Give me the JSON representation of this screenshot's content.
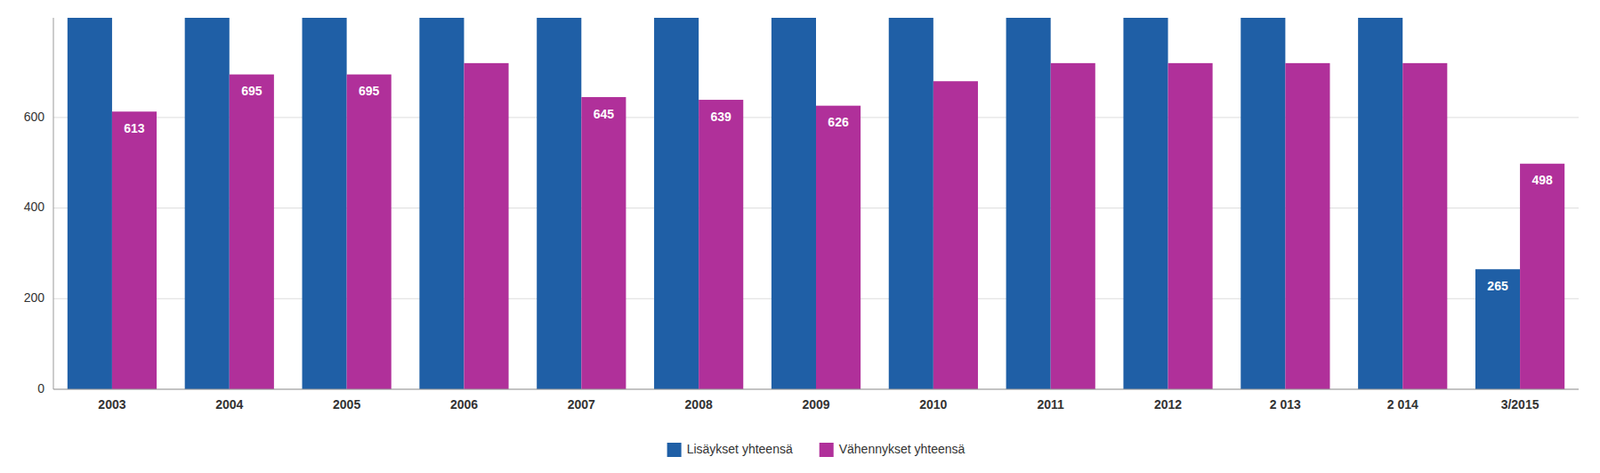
{
  "chart_data": {
    "type": "bar",
    "categories": [
      "2003",
      "2004",
      "2005",
      "2006",
      "2007",
      "2008",
      "2009",
      "2010",
      "2011",
      "2012",
      "2 013",
      "2 014",
      "3/2015"
    ],
    "series": [
      {
        "name": "Lisäykset yhteensä",
        "color": "#1F5FA6",
        "values": [
          820,
          820,
          820,
          820,
          820,
          820,
          820,
          820,
          820,
          820,
          820,
          820,
          265
        ],
        "value_labels": [
          null,
          null,
          null,
          null,
          null,
          null,
          null,
          null,
          null,
          null,
          null,
          null,
          "265"
        ]
      },
      {
        "name": "Vähennykset yhteensä",
        "color": "#B0309A",
        "values": [
          613,
          695,
          695,
          720,
          645,
          639,
          626,
          680,
          720,
          720,
          720,
          720,
          498
        ],
        "value_labels": [
          "613",
          "695",
          "695",
          null,
          "645",
          "639",
          "626",
          null,
          null,
          null,
          null,
          null,
          "498"
        ]
      }
    ],
    "ylim": [
      0,
      820
    ],
    "yticks": [
      0,
      200,
      400,
      600
    ],
    "grid": true,
    "legend": "bottom",
    "data_labels": true
  }
}
